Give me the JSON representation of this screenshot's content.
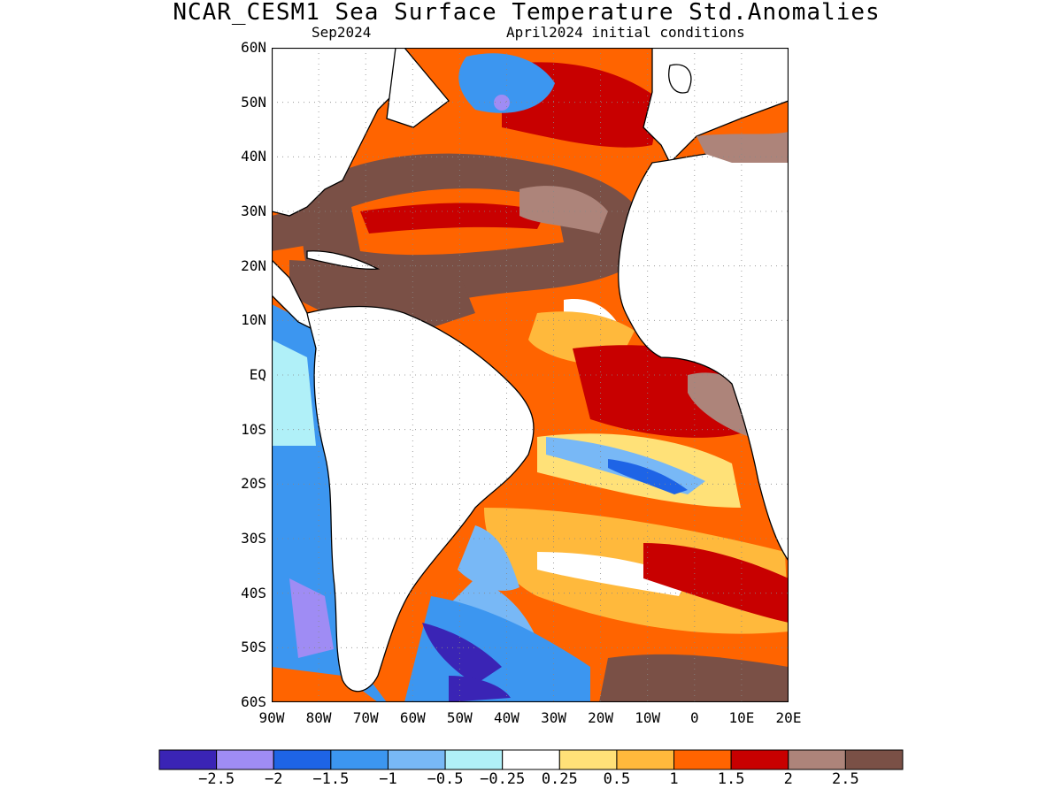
{
  "title": "NCAR_CESM1 Sea Surface Temperature Std.Anomalies",
  "subtitle_left": "Sep2024",
  "subtitle_right": "April2024 initial conditions",
  "map": {
    "lat_labels": [
      "60N",
      "50N",
      "40N",
      "30N",
      "20N",
      "10N",
      "EQ",
      "10S",
      "20S",
      "30S",
      "40S",
      "50S",
      "60S"
    ],
    "lon_labels": [
      "90W",
      "80W",
      "70W",
      "60W",
      "50W",
      "40W",
      "30W",
      "20W",
      "10W",
      "0",
      "10E",
      "20E"
    ]
  },
  "colorbar": {
    "colors": [
      "#3a24b5",
      "#9f8cf4",
      "#1e64e6",
      "#3c96f0",
      "#78b8f6",
      "#b0f0f8",
      "#ffffff",
      "#ffe178",
      "#ffb93c",
      "#ff6400",
      "#c80000",
      "#ad847a",
      "#7a5046"
    ],
    "labels": [
      "−2.5",
      "−2",
      "−1.5",
      "−1",
      "−0.5",
      "−0.25",
      "0.25",
      "0.5",
      "1",
      "1.5",
      "2",
      "2.5"
    ]
  }
}
